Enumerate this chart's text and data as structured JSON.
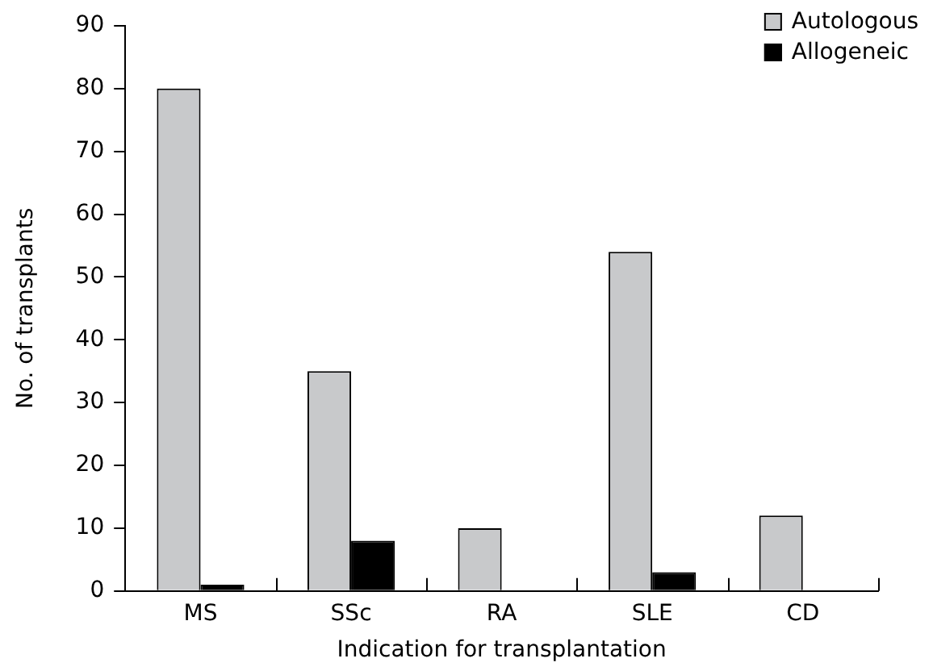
{
  "chart_data": {
    "type": "bar",
    "xlabel": "Indication for transplantation",
    "ylabel": "No. of transplants",
    "categories": [
      "MS",
      "SSc",
      "RA",
      "SLE",
      "CD"
    ],
    "series": [
      {
        "name": "Autologous",
        "color": "#c8c9cb",
        "values": [
          80,
          35,
          10,
          54,
          12
        ]
      },
      {
        "name": "Allogeneic",
        "color": "#000000",
        "values": [
          1,
          8,
          0,
          3,
          0
        ]
      }
    ],
    "ylim": [
      0,
      90
    ],
    "yticks": [
      0,
      10,
      20,
      30,
      40,
      50,
      60,
      70,
      80,
      90
    ],
    "grid": false,
    "legend": "top right"
  }
}
